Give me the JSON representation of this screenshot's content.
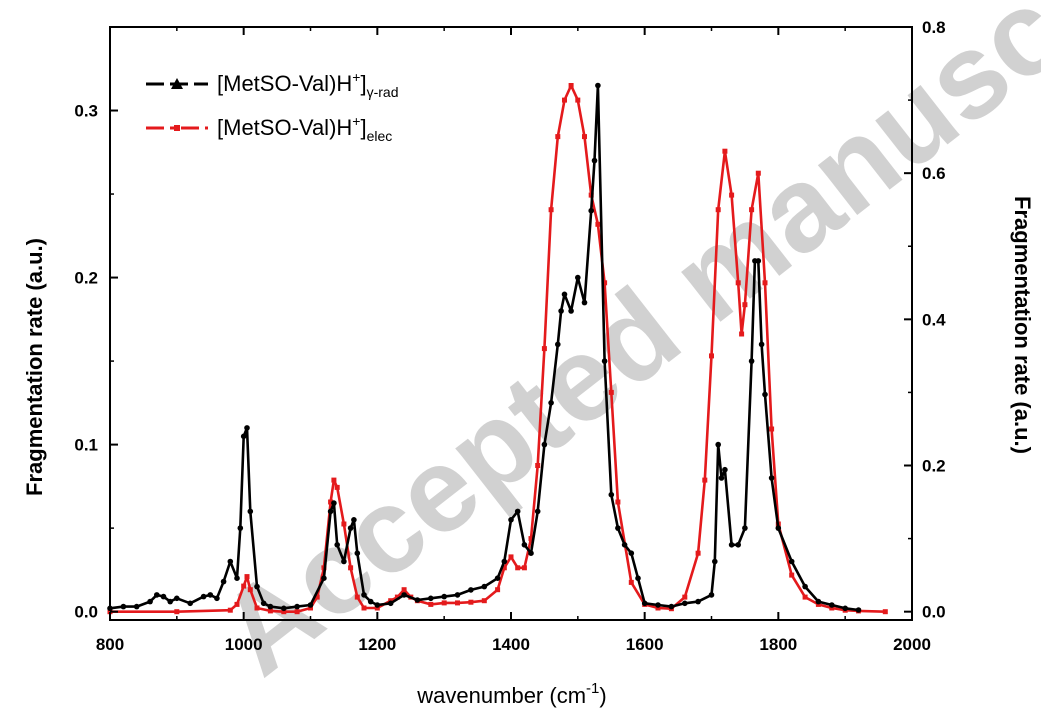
{
  "watermark": "Accepted manuscript",
  "chart_data": {
    "type": "line",
    "xlabel": "wavenumber (cm",
    "xlabel_sup": "-1",
    "xlabel_end": ")",
    "ylabel_left": "Fragmentation rate (a.u.)",
    "ylabel_right": "Fragmentation rate (a.u.)",
    "xlim": [
      800,
      2000
    ],
    "ylim_left": [
      -0.005,
      0.35
    ],
    "ylim_right": [
      -0.0114,
      0.8
    ],
    "xticks": [
      "800",
      "1000",
      "1200",
      "1400",
      "1600",
      "1800",
      "2000"
    ],
    "yticks_left": [
      "0.0",
      "0.1",
      "0.2",
      "0.3"
    ],
    "yticks_right": [
      "0.0",
      "0.2",
      "0.4",
      "0.6",
      "0.8"
    ],
    "legend_position": "top-left",
    "series": [
      {
        "name": "[MetSO-Val)H",
        "name_sup": "+",
        "name_sub": "]",
        "name_sub2": "γ-rad",
        "axis": "left",
        "color": "#000000",
        "marker": "triangle",
        "x": [
          800,
          820,
          840,
          860,
          870,
          880,
          890,
          900,
          920,
          940,
          950,
          960,
          970,
          980,
          990,
          995,
          1000,
          1005,
          1010,
          1020,
          1030,
          1040,
          1060,
          1080,
          1100,
          1120,
          1130,
          1135,
          1140,
          1150,
          1160,
          1165,
          1170,
          1180,
          1190,
          1200,
          1220,
          1240,
          1260,
          1280,
          1300,
          1320,
          1340,
          1360,
          1380,
          1390,
          1400,
          1410,
          1420,
          1430,
          1440,
          1450,
          1460,
          1470,
          1475,
          1480,
          1490,
          1500,
          1510,
          1520,
          1525,
          1530,
          1540,
          1550,
          1560,
          1570,
          1580,
          1590,
          1600,
          1620,
          1640,
          1660,
          1680,
          1700,
          1705,
          1710,
          1715,
          1720,
          1730,
          1740,
          1750,
          1760,
          1765,
          1770,
          1775,
          1780,
          1790,
          1800,
          1820,
          1840,
          1860,
          1880,
          1900,
          1920
        ],
        "y": [
          0.002,
          0.003,
          0.003,
          0.006,
          0.01,
          0.009,
          0.006,
          0.008,
          0.005,
          0.009,
          0.01,
          0.008,
          0.018,
          0.03,
          0.02,
          0.05,
          0.105,
          0.11,
          0.06,
          0.015,
          0.005,
          0.003,
          0.002,
          0.003,
          0.004,
          0.02,
          0.06,
          0.065,
          0.04,
          0.03,
          0.05,
          0.055,
          0.035,
          0.01,
          0.006,
          0.004,
          0.005,
          0.01,
          0.007,
          0.008,
          0.009,
          0.01,
          0.013,
          0.015,
          0.02,
          0.03,
          0.055,
          0.06,
          0.04,
          0.035,
          0.06,
          0.1,
          0.125,
          0.16,
          0.18,
          0.19,
          0.18,
          0.2,
          0.185,
          0.24,
          0.27,
          0.315,
          0.15,
          0.07,
          0.05,
          0.04,
          0.035,
          0.02,
          0.005,
          0.004,
          0.003,
          0.005,
          0.006,
          0.01,
          0.03,
          0.1,
          0.08,
          0.085,
          0.04,
          0.04,
          0.05,
          0.15,
          0.21,
          0.21,
          0.16,
          0.13,
          0.08,
          0.05,
          0.03,
          0.015,
          0.006,
          0.004,
          0.002,
          0.001
        ]
      },
      {
        "name": "[MetSO-Val)H",
        "name_sup": "+",
        "name_sub": "]",
        "name_sub2": "elec",
        "axis": "right",
        "color": "#e41a1c",
        "marker": "square",
        "x": [
          800,
          900,
          980,
          990,
          1000,
          1005,
          1010,
          1020,
          1040,
          1060,
          1080,
          1100,
          1110,
          1120,
          1130,
          1135,
          1140,
          1150,
          1160,
          1170,
          1180,
          1200,
          1220,
          1230,
          1240,
          1250,
          1260,
          1280,
          1300,
          1320,
          1340,
          1360,
          1380,
          1390,
          1400,
          1410,
          1420,
          1430,
          1440,
          1450,
          1460,
          1470,
          1480,
          1490,
          1500,
          1510,
          1520,
          1530,
          1540,
          1550,
          1560,
          1580,
          1600,
          1620,
          1640,
          1660,
          1680,
          1690,
          1700,
          1710,
          1720,
          1730,
          1740,
          1745,
          1750,
          1760,
          1770,
          1780,
          1790,
          1800,
          1820,
          1840,
          1860,
          1880,
          1900,
          1920,
          1960
        ],
        "y": [
          0.0,
          0.0,
          0.002,
          0.01,
          0.035,
          0.048,
          0.03,
          0.005,
          0.001,
          0.0,
          0.0,
          0.005,
          0.02,
          0.06,
          0.15,
          0.18,
          0.17,
          0.12,
          0.06,
          0.02,
          0.005,
          0.005,
          0.015,
          0.02,
          0.03,
          0.02,
          0.015,
          0.01,
          0.012,
          0.012,
          0.013,
          0.015,
          0.03,
          0.06,
          0.075,
          0.06,
          0.06,
          0.1,
          0.2,
          0.36,
          0.55,
          0.65,
          0.7,
          0.72,
          0.7,
          0.65,
          0.57,
          0.53,
          0.45,
          0.3,
          0.15,
          0.04,
          0.01,
          0.005,
          0.004,
          0.02,
          0.08,
          0.18,
          0.35,
          0.55,
          0.63,
          0.57,
          0.45,
          0.38,
          0.42,
          0.55,
          0.6,
          0.45,
          0.25,
          0.12,
          0.05,
          0.02,
          0.01,
          0.005,
          0.002,
          0.001,
          0.0
        ]
      }
    ]
  }
}
